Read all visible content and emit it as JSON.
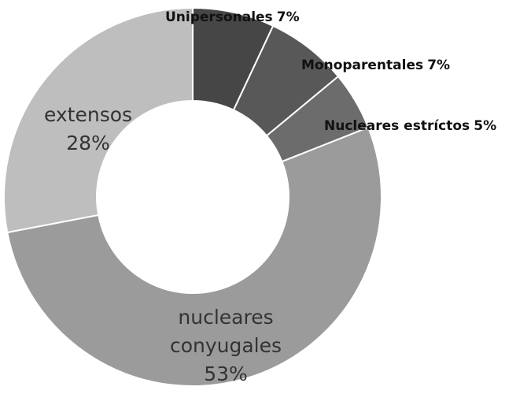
{
  "chart_data": {
    "type": "donut",
    "categories": [
      "Unipersonales",
      "Monoparentales",
      "Nucleares estríctos",
      "nucleares conyugales",
      "extensos"
    ],
    "values": [
      7,
      7,
      5,
      53,
      28
    ],
    "value_labels": [
      "7%",
      "7%",
      "5%",
      "53%",
      "28%"
    ],
    "colors": [
      "#464646",
      "#585858",
      "#6c6c6c",
      "#9b9b9b",
      "#bebebe"
    ]
  }
}
